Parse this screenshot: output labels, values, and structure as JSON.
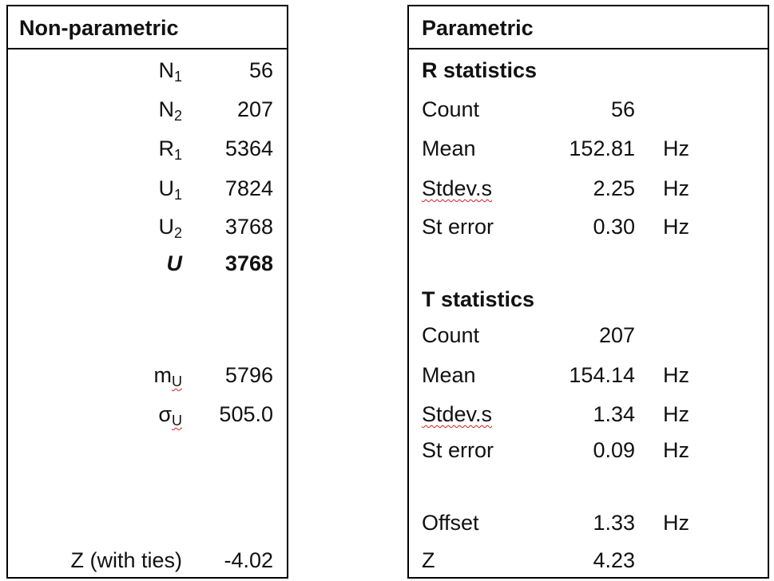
{
  "left": {
    "title": "Non-parametric",
    "rows": [
      {
        "label": "N",
        "sub": "1",
        "value": "56"
      },
      {
        "label": "N",
        "sub": "2",
        "value": "207"
      },
      {
        "label": "R",
        "sub": "1",
        "value": "5364"
      },
      {
        "label": "U",
        "sub": "1",
        "value": "7824"
      },
      {
        "label": "U",
        "sub": "2",
        "value": "3768"
      },
      {
        "label": "U",
        "value": "3768"
      },
      {
        "label": "m",
        "sub": "U",
        "value": "5796"
      },
      {
        "label": "σ",
        "sub": "U",
        "value": "505.0"
      },
      {
        "label": "Z (with ties)",
        "value": "-4.02"
      }
    ]
  },
  "right": {
    "title": "Parametric",
    "rows": [
      {
        "heading": "R statistics"
      },
      {
        "label": "Count",
        "value": "56"
      },
      {
        "label": "Mean",
        "value": "152.81",
        "unit": "Hz"
      },
      {
        "label": "Stdev.s",
        "value": "2.25",
        "unit": "Hz"
      },
      {
        "label": "St error",
        "value": "0.30",
        "unit": "Hz"
      },
      {
        "heading": "T statistics"
      },
      {
        "label": "Count",
        "value": "207"
      },
      {
        "label": "Mean",
        "value": "154.14",
        "unit": "Hz"
      },
      {
        "label": "Stdev.s",
        "value": "1.34",
        "unit": "Hz"
      },
      {
        "label": "St error",
        "value": "0.09",
        "unit": "Hz"
      },
      {
        "label": "Offset",
        "value": "1.33",
        "unit": "Hz"
      },
      {
        "label": "Z",
        "value": "4.23"
      }
    ]
  }
}
